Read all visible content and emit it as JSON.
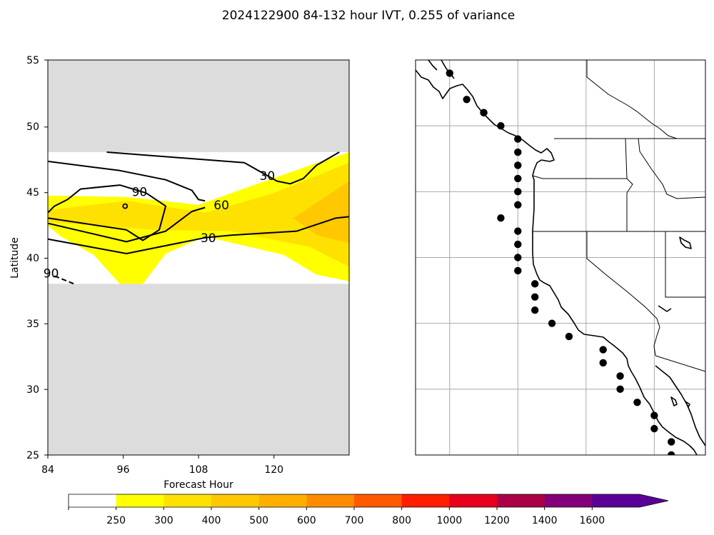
{
  "figure": {
    "title": "2024122900 84-132 hour IVT, 0.255 of variance"
  },
  "chart_data": [
    {
      "type": "heatmap",
      "xlabel": "Forecast Hour",
      "ylabel": "Latitude",
      "xlim": [
        84,
        130
      ],
      "ylim": [
        25,
        55
      ],
      "xticks": [
        "84",
        "96",
        "108",
        "120"
      ],
      "yticks": [
        "25",
        "30",
        "35",
        "40",
        "45",
        "50",
        "55"
      ],
      "valid_lat_range": [
        38,
        48
      ],
      "missing_color": "#dcdcdc",
      "fill_bands": [
        {
          "level": "250-300",
          "color": "#ffff00",
          "points": [
            [
              84,
              44.7
            ],
            [
              96,
              44.6
            ],
            [
              107,
              44.0
            ],
            [
              116,
              45.6
            ],
            [
              124,
              47.0
            ],
            [
              130,
              48.0
            ],
            [
              130,
              38.2
            ],
            [
              125,
              38.7
            ],
            [
              120,
              40.2
            ],
            [
              108,
              41.6
            ],
            [
              102,
              40.3
            ],
            [
              98.5,
              38.0
            ],
            [
              95,
              38.0
            ],
            [
              91,
              40.2
            ],
            [
              86,
              41.6
            ],
            [
              84,
              42.4
            ]
          ]
        },
        {
          "level": "300-400",
          "color": "#ffe100",
          "points": [
            [
              84,
              43.6
            ],
            [
              96,
              44.3
            ],
            [
              108,
              43.4
            ],
            [
              118,
              44.8
            ],
            [
              126,
              46.4
            ],
            [
              130,
              47.2
            ],
            [
              130,
              39.3
            ],
            [
              124,
              40.8
            ],
            [
              112,
              42.0
            ],
            [
              100,
              42.1
            ],
            [
              92,
              42.4
            ],
            [
              84,
              42.7
            ]
          ]
        },
        {
          "level": "400-500",
          "color": "#ffc800",
          "points": [
            [
              121.5,
              43.0
            ],
            [
              130,
              45.8
            ],
            [
              130,
              41.1
            ],
            [
              125,
              41.7
            ]
          ]
        }
      ],
      "contours": [
        {
          "points": [
            [
              93,
              48.0
            ],
            [
              114,
              47.2
            ],
            [
              119,
              45.8
            ],
            [
              121,
              45.6
            ],
            [
              123,
              46.0
            ],
            [
              125,
              47.0
            ],
            [
              128.5,
              48.0
            ]
          ]
        },
        {
          "points": [
            [
              84,
              47.3
            ],
            [
              95,
              46.6
            ],
            [
              102,
              45.9
            ],
            [
              106,
              45.1
            ],
            [
              107,
              44.4
            ],
            [
              108,
              44.3
            ]
          ]
        },
        {
          "label": "90",
          "points": [
            [
              84,
              43.4
            ],
            [
              85,
              43.9
            ],
            [
              87,
              44.4
            ],
            [
              89,
              45.2
            ],
            [
              95,
              45.5
            ],
            [
              99,
              44.9
            ],
            [
              102,
              43.9
            ],
            [
              101,
              42.1
            ],
            [
              98.5,
              41.3
            ],
            [
              96,
              42.1
            ],
            [
              84,
              43.0
            ]
          ]
        },
        {
          "label": "60",
          "points": [
            [
              84,
              42.6
            ],
            [
              96,
              41.2
            ],
            [
              102,
              42.0
            ],
            [
              106,
              43.5
            ],
            [
              108,
              43.8
            ]
          ]
        },
        {
          "label": "30",
          "points": [
            [
              84,
              41.4
            ],
            [
              96,
              40.3
            ],
            [
              108,
              41.5
            ],
            [
              112,
              41.7
            ],
            [
              122,
              42.0
            ],
            [
              128,
              43.0
            ],
            [
              130,
              43.1
            ]
          ]
        },
        {
          "label": "30",
          "dashed": true,
          "points": [
            [
              85,
              38.6
            ],
            [
              88,
              38.0
            ]
          ]
        }
      ],
      "contour_labels": [
        {
          "text": "30",
          "x": 117.5,
          "y": 46.2
        },
        {
          "text": "90",
          "x": 98,
          "y": 45.0
        },
        {
          "text": "60",
          "x": 110.5,
          "y": 44.0
        },
        {
          "text": "30",
          "x": 108.5,
          "y": 41.5
        },
        {
          "text": "90",
          "x": 84.5,
          "y": 38.8
        }
      ],
      "small_contour": {
        "x": 95.8,
        "y": 43.9
      }
    },
    {
      "type": "scatter",
      "map": "US West Coast",
      "lon_range": [
        -130,
        -113
      ],
      "lat_range": [
        25,
        55
      ],
      "gridlines": {
        "lon": [
          -128,
          -124,
          -120,
          -116
        ],
        "lat": [
          25,
          30,
          35,
          40,
          45,
          50
        ]
      },
      "points": [
        {
          "lon": -128,
          "lat": 54
        },
        {
          "lon": -127,
          "lat": 52
        },
        {
          "lon": -126,
          "lat": 51
        },
        {
          "lon": -126,
          "lat": 51
        },
        {
          "lon": -125,
          "lat": 50
        },
        {
          "lon": -124,
          "lat": 49
        },
        {
          "lon": -124,
          "lat": 48
        },
        {
          "lon": -124,
          "lat": 47
        },
        {
          "lon": -124,
          "lat": 46
        },
        {
          "lon": -124,
          "lat": 45
        },
        {
          "lon": -124,
          "lat": 44
        },
        {
          "lon": -125,
          "lat": 43
        },
        {
          "lon": -124,
          "lat": 42
        },
        {
          "lon": -124,
          "lat": 41
        },
        {
          "lon": -124,
          "lat": 40
        },
        {
          "lon": -124,
          "lat": 39
        },
        {
          "lon": -123,
          "lat": 38
        },
        {
          "lon": -123,
          "lat": 37
        },
        {
          "lon": -123,
          "lat": 36
        },
        {
          "lon": -122,
          "lat": 35
        },
        {
          "lon": -121,
          "lat": 34
        },
        {
          "lon": -119,
          "lat": 33
        },
        {
          "lon": -119,
          "lat": 32
        },
        {
          "lon": -118,
          "lat": 31
        },
        {
          "lon": -118,
          "lat": 30
        },
        {
          "lon": -117,
          "lat": 29
        },
        {
          "lon": -116,
          "lat": 28
        },
        {
          "lon": -116,
          "lat": 27
        },
        {
          "lon": -115,
          "lat": 26
        },
        {
          "lon": -115,
          "lat": 25
        }
      ]
    }
  ],
  "colorbar": {
    "labels": [
      "250",
      "300",
      "400",
      "500",
      "600",
      "700",
      "800",
      "1000",
      "1200",
      "1400",
      "1600"
    ],
    "colors": [
      "#ffffff",
      "#ffff00",
      "#ffe100",
      "#ffc800",
      "#ffaf00",
      "#ff8c00",
      "#ff5a00",
      "#ff1e00",
      "#e6001e",
      "#aa0046",
      "#820078",
      "#5a0096"
    ]
  }
}
